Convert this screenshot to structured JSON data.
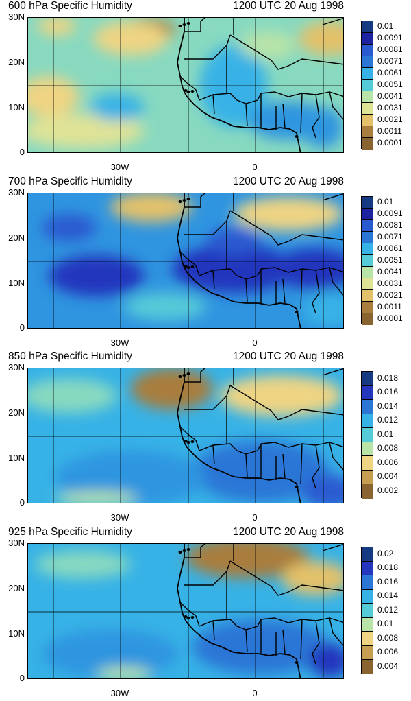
{
  "colors": {
    "scale": [
      "#8a6430",
      "#a87d3d",
      "#c79f52",
      "#e3c16a",
      "#eed483",
      "#dfe396",
      "#b9e4a7",
      "#88d9c0",
      "#56cbd8",
      "#37b2e6",
      "#2f95e0",
      "#2c76d6",
      "#2a5ad0",
      "#2436bd",
      "#1d22a0",
      "#163a82"
    ]
  },
  "panels": [
    {
      "title": "600 hPa Specific Humidity",
      "time": "1200 UTC 20 Aug 1998",
      "levels": [
        "0.01",
        "0.0091",
        "0.0081",
        "0.0071",
        "0.0061",
        "0.0051",
        "0.0041",
        "0.0031",
        "0.0021",
        "0.0011",
        "0.0001"
      ],
      "base": 7,
      "blobs": [
        {
          "x": 42,
          "y": 12,
          "rx": 28,
          "ry": 14,
          "c": 4
        },
        {
          "x": 175,
          "y": 18,
          "rx": 40,
          "ry": 18,
          "c": 1
        },
        {
          "x": 150,
          "y": 30,
          "rx": 55,
          "ry": 25,
          "c": 4
        },
        {
          "x": 30,
          "y": 115,
          "rx": 45,
          "ry": 30,
          "c": 4
        },
        {
          "x": 80,
          "y": 165,
          "rx": 90,
          "ry": 25,
          "c": 5
        },
        {
          "x": 300,
          "y": 100,
          "rx": 50,
          "ry": 60,
          "c": 9
        },
        {
          "x": 380,
          "y": 150,
          "rx": 60,
          "ry": 28,
          "c": 10
        },
        {
          "x": 130,
          "y": 130,
          "rx": 40,
          "ry": 20,
          "c": 9
        },
        {
          "x": 440,
          "y": 30,
          "rx": 45,
          "ry": 25,
          "c": 3
        },
        {
          "x": 430,
          "y": 160,
          "rx": 30,
          "ry": 30,
          "c": 10
        },
        {
          "x": 350,
          "y": 40,
          "rx": 40,
          "ry": 20,
          "c": 6
        }
      ]
    },
    {
      "title": "700 hPa Specific Humidity",
      "time": "1200 UTC 20 Aug 1998",
      "levels": [
        "0.01",
        "0.0091",
        "0.0081",
        "0.0071",
        "0.0061",
        "0.0051",
        "0.0041",
        "0.0031",
        "0.0021",
        "0.0011",
        "0.0001"
      ],
      "base": 10,
      "blobs": [
        {
          "x": 180,
          "y": 20,
          "rx": 60,
          "ry": 22,
          "c": 3
        },
        {
          "x": 380,
          "y": 30,
          "rx": 80,
          "ry": 25,
          "c": 4
        },
        {
          "x": 100,
          "y": 120,
          "rx": 70,
          "ry": 30,
          "c": 13
        },
        {
          "x": 300,
          "y": 110,
          "rx": 90,
          "ry": 35,
          "c": 13
        },
        {
          "x": 420,
          "y": 110,
          "rx": 60,
          "ry": 30,
          "c": 13
        },
        {
          "x": 200,
          "y": 165,
          "rx": 60,
          "ry": 20,
          "c": 8
        },
        {
          "x": 60,
          "y": 50,
          "rx": 40,
          "ry": 20,
          "c": 12
        },
        {
          "x": 440,
          "y": 170,
          "rx": 40,
          "ry": 25,
          "c": 9
        },
        {
          "x": 300,
          "y": 70,
          "rx": 40,
          "ry": 20,
          "c": 12
        }
      ]
    },
    {
      "title": "850 hPa Specific Humidity",
      "time": "1200 UTC 20 Aug 1998",
      "levels": [
        "0.018",
        "0.016",
        "0.014",
        "0.012",
        "0.01",
        "0.008",
        "0.006",
        "0.004",
        "0.002"
      ],
      "base": 9,
      "blobs": [
        {
          "x": 210,
          "y": 30,
          "rx": 60,
          "ry": 30,
          "c": 1
        },
        {
          "x": 370,
          "y": 40,
          "rx": 90,
          "ry": 30,
          "c": 4
        },
        {
          "x": 60,
          "y": 40,
          "rx": 70,
          "ry": 25,
          "c": 7
        },
        {
          "x": 340,
          "y": 150,
          "rx": 100,
          "ry": 45,
          "c": 11
        },
        {
          "x": 150,
          "y": 160,
          "rx": 110,
          "ry": 40,
          "c": 10
        },
        {
          "x": 100,
          "y": 190,
          "rx": 60,
          "ry": 10,
          "c": 6
        },
        {
          "x": 440,
          "y": 180,
          "rx": 40,
          "ry": 25,
          "c": 12
        }
      ]
    },
    {
      "title": "925 hPa Specific Humidity",
      "time": "1200 UTC 20 Aug 1998",
      "levels": [
        "0.02",
        "0.018",
        "0.016",
        "0.014",
        "0.012",
        "0.01",
        "0.008",
        "0.006",
        "0.004"
      ],
      "base": 9,
      "blobs": [
        {
          "x": 320,
          "y": 20,
          "rx": 90,
          "ry": 30,
          "c": 1
        },
        {
          "x": 420,
          "y": 50,
          "rx": 50,
          "ry": 25,
          "c": 3
        },
        {
          "x": 80,
          "y": 30,
          "rx": 70,
          "ry": 20,
          "c": 7
        },
        {
          "x": 340,
          "y": 150,
          "rx": 100,
          "ry": 40,
          "c": 11
        },
        {
          "x": 120,
          "y": 160,
          "rx": 100,
          "ry": 35,
          "c": 10
        },
        {
          "x": 140,
          "y": 190,
          "rx": 40,
          "ry": 10,
          "c": 6
        },
        {
          "x": 440,
          "y": 170,
          "rx": 30,
          "ry": 25,
          "c": 13
        }
      ]
    }
  ],
  "axes": {
    "y_ticks": [
      "30N",
      "20N",
      "10N",
      "0"
    ],
    "x_ticks": [
      "30W",
      "0"
    ]
  },
  "chart_data": [
    {
      "type": "heatmap",
      "title": "600 hPa Specific Humidity",
      "subtitle": "1200 UTC 20 Aug 1998",
      "yticks": [
        "30N",
        "20N",
        "10N",
        "0"
      ],
      "xticks": [
        "30W",
        "0"
      ],
      "legend": [
        "0.01",
        "0.0091",
        "0.0081",
        "0.0071",
        "0.0061",
        "0.0051",
        "0.0041",
        "0.0031",
        "0.0021",
        "0.0011",
        "0.0001"
      ],
      "legend_placement": "right"
    },
    {
      "type": "heatmap",
      "title": "700 hPa Specific Humidity",
      "subtitle": "1200 UTC 20 Aug 1998",
      "yticks": [
        "30N",
        "20N",
        "10N",
        "0"
      ],
      "xticks": [
        "30W",
        "0"
      ],
      "legend": [
        "0.01",
        "0.0091",
        "0.0081",
        "0.0071",
        "0.0061",
        "0.0051",
        "0.0041",
        "0.0031",
        "0.0021",
        "0.0011",
        "0.0001"
      ],
      "legend_placement": "right"
    },
    {
      "type": "heatmap",
      "title": "850 hPa Specific Humidity",
      "subtitle": "1200 UTC 20 Aug 1998",
      "yticks": [
        "30N",
        "20N",
        "10N",
        "0"
      ],
      "xticks": [
        "30W",
        "0"
      ],
      "legend": [
        "0.018",
        "0.016",
        "0.014",
        "0.012",
        "0.01",
        "0.008",
        "0.006",
        "0.004",
        "0.002"
      ],
      "legend_placement": "right"
    },
    {
      "type": "heatmap",
      "title": "925 hPa Specific Humidity",
      "subtitle": "1200 UTC 20 Aug 1998",
      "yticks": [
        "30N",
        "20N",
        "10N",
        "0"
      ],
      "xticks": [
        "30W",
        "0"
      ],
      "legend": [
        "0.02",
        "0.018",
        "0.016",
        "0.014",
        "0.012",
        "0.01",
        "0.008",
        "0.006",
        "0.004"
      ],
      "legend_placement": "right"
    }
  ]
}
